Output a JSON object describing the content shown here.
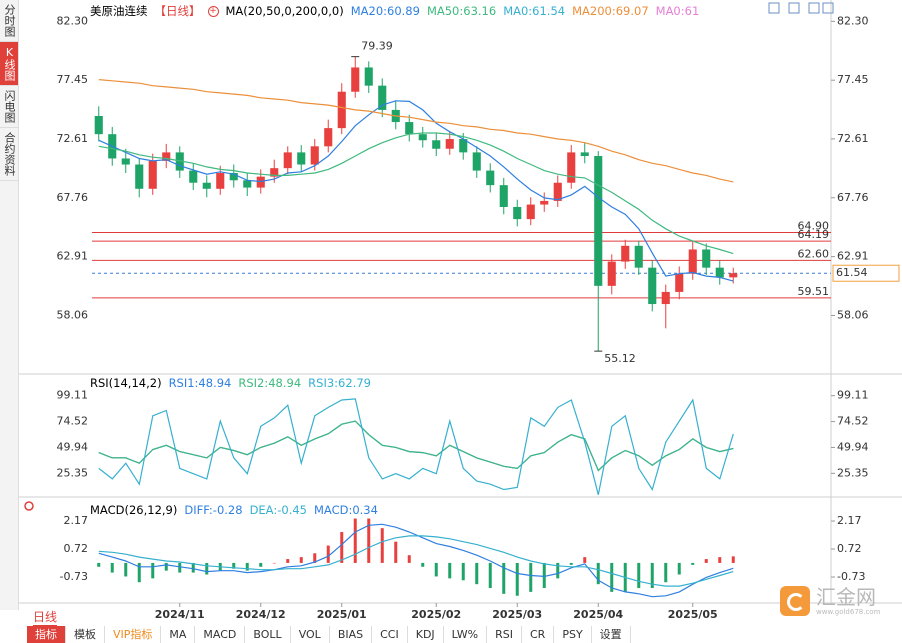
{
  "sidebar": {
    "tabs": [
      "分时图",
      "K线图",
      "闪电图",
      "合约资料"
    ]
  },
  "chart_data": [
    {
      "type": "candlestick",
      "title": "美原油连续",
      "period": "【日线】",
      "indicator": "MA(20,50,0,200,0,0)",
      "legend": [
        {
          "text": "MA20:60.89",
          "color": "#2f7fe0"
        },
        {
          "text": "MA50:63.16",
          "color": "#3fb97f"
        },
        {
          "text": "MA0:61.54",
          "color": "#36b0cf"
        },
        {
          "text": "MA200:69.07",
          "color": "#ec8f3b"
        },
        {
          "text": "MA0:61",
          "color": "#e47fd6"
        }
      ],
      "categories": [
        null,
        null,
        null,
        null,
        null,
        null,
        "2024/11",
        null,
        null,
        null,
        null,
        null,
        "2024/12",
        null,
        null,
        null,
        null,
        null,
        "2025/01",
        null,
        null,
        null,
        null,
        null,
        null,
        "2025/02",
        null,
        null,
        null,
        null,
        null,
        "2025/03",
        null,
        null,
        null,
        null,
        null,
        "2025/04",
        null,
        null,
        null,
        null,
        null,
        null,
        "2025/05",
        null,
        null,
        null
      ],
      "ohlc": [
        [
          74.5,
          75.3,
          72.4,
          73.0
        ],
        [
          73.0,
          73.6,
          70.4,
          71.0
        ],
        [
          71.0,
          71.8,
          69.8,
          70.5
        ],
        [
          70.5,
          71.0,
          67.8,
          68.5
        ],
        [
          68.5,
          71.4,
          68.0,
          70.8
        ],
        [
          70.8,
          72.2,
          70.2,
          71.5
        ],
        [
          71.5,
          72.0,
          69.4,
          70.0
        ],
        [
          70.0,
          70.6,
          68.4,
          69.0
        ],
        [
          69.0,
          69.6,
          67.8,
          68.5
        ],
        [
          68.5,
          70.4,
          68.0,
          69.8
        ],
        [
          69.8,
          70.5,
          68.6,
          69.2
        ],
        [
          69.2,
          69.8,
          67.9,
          68.6
        ],
        [
          68.6,
          70.1,
          68.1,
          69.5
        ],
        [
          69.5,
          70.9,
          69.0,
          70.2
        ],
        [
          70.2,
          72.0,
          69.7,
          71.5
        ],
        [
          71.5,
          72.1,
          69.9,
          70.5
        ],
        [
          70.5,
          72.6,
          70.0,
          72.0
        ],
        [
          72.0,
          74.2,
          71.5,
          73.5
        ],
        [
          73.5,
          77.2,
          73.0,
          76.5
        ],
        [
          76.5,
          79.39,
          76.0,
          78.5
        ],
        [
          78.5,
          79.0,
          76.4,
          77.0
        ],
        [
          77.0,
          77.6,
          74.4,
          75.0
        ],
        [
          75.0,
          75.7,
          73.4,
          74.0
        ],
        [
          74.0,
          74.6,
          72.4,
          73.0
        ],
        [
          73.0,
          73.6,
          71.9,
          72.5
        ],
        [
          72.5,
          73.1,
          71.2,
          71.8
        ],
        [
          71.8,
          73.2,
          71.3,
          72.6
        ],
        [
          72.6,
          73.1,
          70.9,
          71.5
        ],
        [
          71.5,
          72.0,
          69.4,
          70.0
        ],
        [
          70.0,
          70.6,
          68.2,
          68.8
        ],
        [
          68.8,
          69.4,
          66.4,
          67.0
        ],
        [
          67.0,
          67.6,
          65.4,
          66.0
        ],
        [
          66.0,
          67.8,
          65.5,
          67.2
        ],
        [
          67.2,
          68.2,
          66.6,
          67.5
        ],
        [
          67.5,
          69.6,
          67.0,
          69.0
        ],
        [
          69.0,
          72.1,
          68.5,
          71.5
        ],
        [
          71.5,
          72.3,
          70.6,
          71.2
        ],
        [
          71.2,
          71.6,
          55.12,
          60.5
        ],
        [
          60.5,
          63.1,
          59.8,
          62.5
        ],
        [
          62.5,
          64.3,
          61.9,
          63.8
        ],
        [
          63.8,
          64.2,
          61.4,
          62.0
        ],
        [
          62.0,
          62.6,
          58.4,
          59.0
        ],
        [
          59.0,
          60.6,
          57.0,
          60.0
        ],
        [
          60.0,
          62.1,
          59.4,
          61.5
        ],
        [
          61.5,
          64.2,
          61.0,
          63.5
        ],
        [
          63.5,
          64.0,
          61.4,
          62.0
        ],
        [
          62.0,
          62.6,
          60.6,
          61.2
        ],
        [
          61.2,
          62.0,
          60.7,
          61.54
        ]
      ],
      "up_color": "#e8403f",
      "down_color": "#1fa467",
      "series": [
        {
          "color": "#2f7fe0",
          "values": [
            72.5,
            72,
            71.5,
            71,
            70.8,
            70.9,
            70.4,
            70.05,
            69.7,
            69.9,
            69.7,
            69.2,
            69.1,
            69.3,
            69.8,
            69.9,
            70.4,
            71.2,
            72.4,
            73.7,
            74.6,
            75.4,
            75.75,
            75.7,
            75.0,
            73.9,
            73.2,
            72.6,
            71.9,
            71.2,
            70.3,
            69.3,
            68.4,
            67.75,
            67.6,
            68.0,
            68.7,
            67.8,
            67.0,
            66.4,
            65.2,
            63.2,
            61.3,
            61.5,
            61.6,
            61.3,
            61.2,
            60.89
          ]
        },
        {
          "color": "#3fb97f",
          "values": [
            72.0,
            71.8,
            71.6,
            71.3,
            71.1,
            71.0,
            70.8,
            70.6,
            70.3,
            70.1,
            70.0,
            69.8,
            69.7,
            69.6,
            69.6,
            69.7,
            69.8,
            70.1,
            70.6,
            71.2,
            71.8,
            72.3,
            72.7,
            73.0,
            73.1,
            73.1,
            73.0,
            72.8,
            72.5,
            72.1,
            71.6,
            71.0,
            70.5,
            70.0,
            69.7,
            69.5,
            69.4,
            68.8,
            68.2,
            67.5,
            66.8,
            65.9,
            65.2,
            64.6,
            64.2,
            63.8,
            63.5,
            63.16
          ]
        },
        {
          "color": "#ec8f3b",
          "values": [
            77.5,
            77.4,
            77.3,
            77.2,
            77.0,
            76.9,
            76.8,
            76.7,
            76.5,
            76.4,
            76.3,
            76.2,
            76.0,
            75.9,
            75.8,
            75.6,
            75.5,
            75.4,
            75.2,
            75.0,
            74.9,
            74.7,
            74.5,
            74.4,
            74.2,
            74.0,
            73.9,
            73.7,
            73.6,
            73.4,
            73.3,
            73.1,
            73.0,
            72.8,
            72.6,
            72.5,
            72.3,
            72.0,
            71.6,
            71.3,
            70.9,
            70.6,
            70.4,
            70.1,
            69.8,
            69.6,
            69.3,
            69.07
          ]
        }
      ],
      "levels": [
        {
          "value": 64.9,
          "label": "64.90"
        },
        {
          "value": 64.19,
          "label": "64.19"
        },
        {
          "value": 62.6,
          "label": "62.60"
        },
        {
          "value": 59.51,
          "label": "59.51"
        }
      ],
      "level_color": "#e03b3b",
      "last_price": 61.54,
      "high_mark": 79.39,
      "low_mark": 55.12,
      "ylim": [
        53.4,
        83.4
      ],
      "yticks": [
        {
          "value": 82.3,
          "label": "82.30"
        },
        77.45,
        72.61,
        67.76,
        62.91,
        58.06
      ]
    },
    {
      "type": "line",
      "title": "RSI(14,14,2)",
      "legend": [
        {
          "text": "RSI1:48.94",
          "color": "#2f7fe0"
        },
        {
          "text": "RSI2:48.94",
          "color": "#3fb97f"
        },
        {
          "text": "RSI3:62.79",
          "color": "#36b0cf"
        }
      ],
      "series": [
        {
          "color": "#2f7fe0",
          "values": [
            45,
            40,
            40,
            35,
            48,
            52,
            46,
            43,
            40,
            50,
            47,
            43,
            50,
            54,
            60,
            52,
            58,
            63,
            72,
            75,
            62,
            52,
            50,
            46,
            45,
            42,
            52,
            46,
            40,
            36,
            32,
            30,
            42,
            45,
            55,
            62,
            58,
            28,
            40,
            47,
            42,
            33,
            42,
            48,
            58,
            50,
            46,
            48.94
          ]
        },
        {
          "color": "#3fb97f",
          "values": [
            45,
            40,
            40,
            35,
            48,
            52,
            46,
            43,
            40,
            50,
            47,
            43,
            50,
            54,
            60,
            52,
            58,
            63,
            72,
            75,
            62,
            52,
            50,
            46,
            45,
            42,
            52,
            46,
            40,
            36,
            32,
            30,
            42,
            45,
            55,
            62,
            58,
            28,
            40,
            47,
            42,
            33,
            42,
            48,
            58,
            50,
            46,
            48.94
          ]
        },
        {
          "color": "#36b0cf",
          "values": [
            30,
            20,
            35,
            15,
            80,
            85,
            30,
            25,
            20,
            75,
            40,
            25,
            70,
            78,
            90,
            35,
            80,
            88,
            95,
            96,
            40,
            20,
            25,
            20,
            30,
            25,
            75,
            30,
            18,
            15,
            10,
            12,
            78,
            70,
            88,
            95,
            55,
            5,
            70,
            80,
            30,
            10,
            55,
            75,
            95,
            30,
            20,
            62.79
          ]
        }
      ],
      "ylim": [
        0,
        114
      ],
      "yticks": [
        99.11,
        74.52,
        49.94,
        25.35
      ]
    },
    {
      "type": "macd",
      "title": "MACD(26,12,9)",
      "legend": [
        {
          "text": "DIFF:-0.28",
          "color": "#2f7fe0"
        },
        {
          "text": "DEA:-0.45",
          "color": "#36b0cf"
        },
        {
          "text": "MACD:0.34",
          "color": "#2f7fe0"
        }
      ],
      "series": [
        {
          "color": "#2f7fe0",
          "values": [
            0.5,
            0.3,
            0.1,
            -0.2,
            -0.2,
            -0.1,
            -0.2,
            -0.3,
            -0.45,
            -0.4,
            -0.4,
            -0.5,
            -0.45,
            -0.35,
            -0.2,
            -0.15,
            0.05,
            0.35,
            0.95,
            1.6,
            1.95,
            2.0,
            1.85,
            1.6,
            1.3,
            1.0,
            0.85,
            0.65,
            0.4,
            0.1,
            -0.25,
            -0.55,
            -0.65,
            -0.7,
            -0.55,
            -0.25,
            -0.05,
            -0.9,
            -1.3,
            -1.5,
            -1.6,
            -1.75,
            -1.7,
            -1.5,
            -1.1,
            -0.75,
            -0.5,
            -0.28
          ]
        },
        {
          "color": "#36b0cf",
          "values": [
            0.6,
            0.55,
            0.45,
            0.3,
            0.2,
            0.1,
            0.05,
            -0.05,
            -0.15,
            -0.2,
            -0.25,
            -0.3,
            -0.35,
            -0.35,
            -0.3,
            -0.3,
            -0.2,
            -0.1,
            0.15,
            0.45,
            0.8,
            1.1,
            1.3,
            1.4,
            1.4,
            1.35,
            1.25,
            1.1,
            0.95,
            0.75,
            0.55,
            0.3,
            0.1,
            -0.05,
            -0.15,
            -0.2,
            -0.2,
            -0.35,
            -0.55,
            -0.75,
            -0.95,
            -1.1,
            -1.2,
            -1.2,
            -1.05,
            -0.85,
            -0.65,
            -0.45
          ]
        }
      ],
      "histogram": [
        -0.2,
        -0.5,
        -0.7,
        -1.0,
        -0.8,
        -0.4,
        -0.5,
        -0.5,
        -0.6,
        -0.4,
        -0.3,
        -0.4,
        -0.2,
        0,
        0.2,
        0.3,
        0.5,
        0.9,
        1.6,
        2.3,
        2.3,
        1.8,
        1.1,
        0.4,
        -0.2,
        -0.7,
        -0.8,
        -0.9,
        -1.1,
        -1.3,
        -1.6,
        -1.7,
        -1.5,
        -1.3,
        -0.8,
        -0.1,
        0.3,
        -1.1,
        -1.5,
        -1.5,
        -1.3,
        -1.3,
        -1.0,
        -0.6,
        -0.1,
        0.2,
        0.3,
        0.34
      ],
      "up_color": "#e8403f",
      "down_color": "#1fa467",
      "ylim": [
        -1.92,
        3.0
      ],
      "yticks": [
        2.17,
        0.72,
        -0.73
      ]
    }
  ],
  "toolbar": {
    "period": "日线",
    "tabs": [
      "指标",
      "模板",
      "VIP指标",
      "MA",
      "MACD",
      "BOLL",
      "VOL",
      "BIAS",
      "CCI",
      "KDJ",
      "LW%",
      "RSI",
      "CR",
      "PSY",
      "设置"
    ]
  },
  "watermark": {
    "name": "汇金网",
    "url": "www.gold678.com"
  }
}
